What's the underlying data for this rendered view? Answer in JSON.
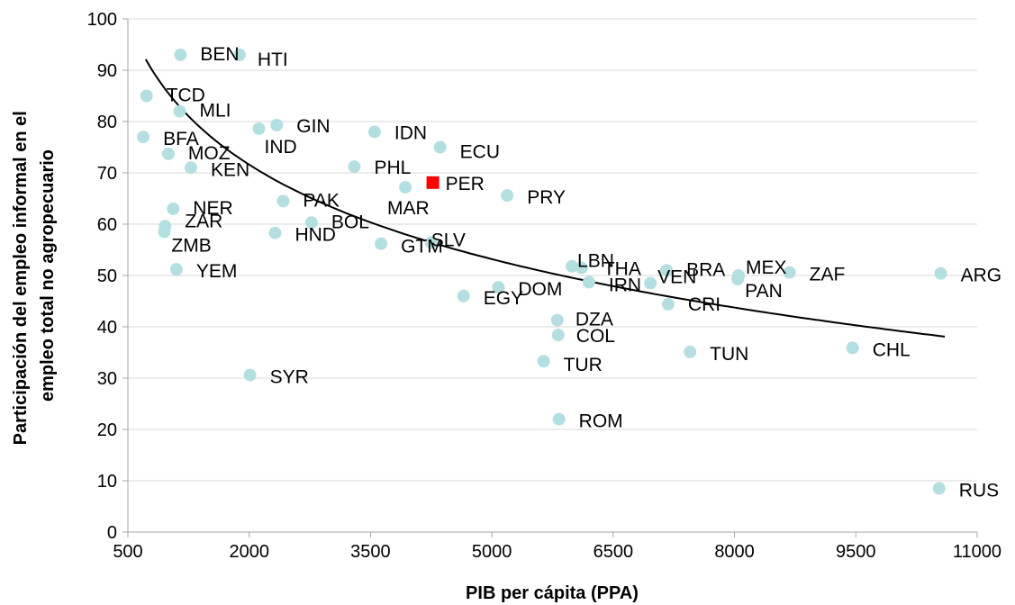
{
  "chart_data": {
    "type": "scatter",
    "title": "",
    "xlabel": "PIB per cápita (PPA)",
    "ylabel_lines": [
      "Participación del empleo informal en el",
      "empleo total no agropecuario"
    ],
    "xlim": [
      500,
      11000
    ],
    "ylim": [
      0,
      100
    ],
    "x_ticks": [
      "500",
      "2000",
      "3500",
      "5000",
      "6500",
      "8000",
      "9500",
      "11000"
    ],
    "y_ticks": [
      "0",
      "10",
      "20",
      "30",
      "40",
      "50",
      "60",
      "70",
      "80",
      "90",
      "100"
    ],
    "grid": "horizontal",
    "legend": "none",
    "colors": {
      "points": "#b4dfe1",
      "highlight": "#ff0000",
      "grid": "#d9d9d9",
      "trend": "#000000"
    },
    "trendline": {
      "type": "logarithmic",
      "a": -20.09,
      "b": 224.3,
      "x_range": [
        720,
        10600
      ]
    },
    "points": [
      {
        "label": "BEN",
        "x": 1150,
        "y": 93,
        "shape": "circle"
      },
      {
        "label": "HTI",
        "x": 1880,
        "y": 93,
        "shape": "circle"
      },
      {
        "label": "TCD",
        "x": 730,
        "y": 85,
        "shape": "circle"
      },
      {
        "label": "MLI",
        "x": 1140,
        "y": 82,
        "shape": "circle"
      },
      {
        "label": "GIN",
        "x": 2340,
        "y": 79.3,
        "shape": "circle"
      },
      {
        "label": "IND",
        "x": 2120,
        "y": 78.6,
        "shape": "circle"
      },
      {
        "label": "BFA",
        "x": 690,
        "y": 77,
        "shape": "circle"
      },
      {
        "label": "IDN",
        "x": 3550,
        "y": 78,
        "shape": "circle"
      },
      {
        "label": "ECU",
        "x": 4360,
        "y": 75,
        "shape": "circle"
      },
      {
        "label": "MOZ",
        "x": 1000,
        "y": 73.7,
        "shape": "circle"
      },
      {
        "label": "KEN",
        "x": 1280,
        "y": 71,
        "shape": "circle"
      },
      {
        "label": "PHL",
        "x": 3300,
        "y": 71.2,
        "shape": "circle"
      },
      {
        "label": "PER",
        "x": 4270,
        "y": 68.1,
        "shape": "square"
      },
      {
        "label": "MAR",
        "x": 3930,
        "y": 67.2,
        "shape": "circle"
      },
      {
        "label": "PRY",
        "x": 5190,
        "y": 65.6,
        "shape": "circle"
      },
      {
        "label": "PAK",
        "x": 2420,
        "y": 64.5,
        "shape": "circle"
      },
      {
        "label": "NER",
        "x": 1060,
        "y": 63,
        "shape": "circle"
      },
      {
        "label": "BOL",
        "x": 2770,
        "y": 60.3,
        "shape": "circle"
      },
      {
        "label": "ZAR",
        "x": 960,
        "y": 59.6,
        "shape": "circle"
      },
      {
        "label": "ZMB",
        "x": 950,
        "y": 58.5,
        "shape": "circle"
      },
      {
        "label": "HND",
        "x": 2320,
        "y": 58.3,
        "shape": "circle"
      },
      {
        "label": "GTM",
        "x": 3630,
        "y": 56.2,
        "shape": "circle"
      },
      {
        "label": "SLV",
        "x": 4250,
        "y": 56.4,
        "shape": "circle"
      },
      {
        "label": "LBN",
        "x": 5990,
        "y": 51.8,
        "shape": "circle"
      },
      {
        "label": "THA",
        "x": 6110,
        "y": 51.5,
        "shape": "circle"
      },
      {
        "label": "BRA",
        "x": 7160,
        "y": 51,
        "shape": "circle"
      },
      {
        "label": "MEX",
        "x": 8050,
        "y": 50,
        "shape": "circle"
      },
      {
        "label": "ZAF",
        "x": 8680,
        "y": 50.6,
        "shape": "circle"
      },
      {
        "label": "ARG",
        "x": 10550,
        "y": 50.4,
        "shape": "circle"
      },
      {
        "label": "YEM",
        "x": 1100,
        "y": 51.2,
        "shape": "circle"
      },
      {
        "label": "IRN",
        "x": 6200,
        "y": 48.7,
        "shape": "circle"
      },
      {
        "label": "PAN",
        "x": 8040,
        "y": 49.3,
        "shape": "circle"
      },
      {
        "label": "VEN",
        "x": 6960,
        "y": 48.5,
        "shape": "circle"
      },
      {
        "label": "DOM",
        "x": 5080,
        "y": 47.7,
        "shape": "circle"
      },
      {
        "label": "EGY",
        "x": 4650,
        "y": 46,
        "shape": "circle"
      },
      {
        "label": "CRI",
        "x": 7180,
        "y": 44.4,
        "shape": "circle"
      },
      {
        "label": "DZA",
        "x": 5810,
        "y": 41.3,
        "shape": "circle"
      },
      {
        "label": "COL",
        "x": 5820,
        "y": 38.4,
        "shape": "circle"
      },
      {
        "label": "CHL",
        "x": 9460,
        "y": 35.9,
        "shape": "circle"
      },
      {
        "label": "TUN",
        "x": 7450,
        "y": 35.1,
        "shape": "circle"
      },
      {
        "label": "TUR",
        "x": 5640,
        "y": 33.3,
        "shape": "circle"
      },
      {
        "label": "SYR",
        "x": 2010,
        "y": 30.6,
        "shape": "circle"
      },
      {
        "label": "ROM",
        "x": 5830,
        "y": 22,
        "shape": "circle"
      },
      {
        "label": "RUS",
        "x": 10530,
        "y": 8.5,
        "shape": "circle"
      }
    ]
  }
}
